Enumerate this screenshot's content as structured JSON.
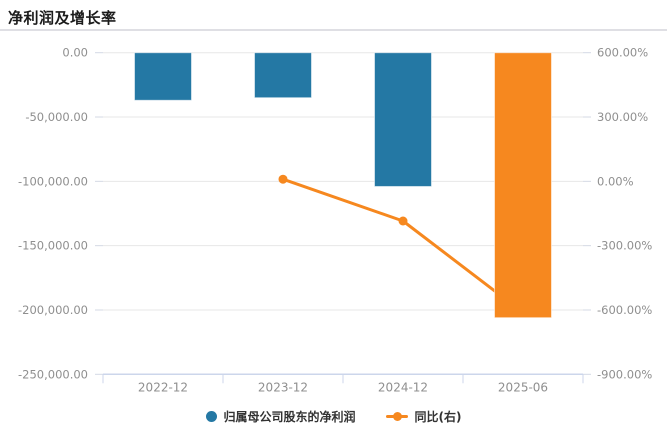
{
  "header": {
    "title": "净利润及增长率"
  },
  "legend": {
    "items": [
      {
        "label": "归属母公司股东的净利润",
        "marker": "circle-icon",
        "color": "#2478a4"
      },
      {
        "label": "同比(右)",
        "marker": "line-dot-icon",
        "color": "#f6881f"
      }
    ]
  },
  "chart_data": {
    "type": "bar",
    "subtype": "dual-axis bar+line combo",
    "title": "净利润及增长率",
    "categories": [
      "2022-12",
      "2023-12",
      "2024-12",
      "2025-06"
    ],
    "series": [
      {
        "name": "归属母公司股东的净利润",
        "type": "bar",
        "axis": "left",
        "values": [
          -37000,
          -35000,
          -104000,
          -206000
        ],
        "colors": [
          "#2478a4",
          "#2478a4",
          "#2478a4",
          "#f6881f"
        ]
      },
      {
        "name": "同比(右)",
        "type": "line",
        "axis": "right",
        "values": [
          null,
          10,
          -185,
          -612
        ],
        "color": "#f6881f"
      }
    ],
    "left_axis": {
      "max": 0,
      "min": -250000,
      "tick_values": [
        0,
        -50000,
        -100000,
        -150000,
        -200000,
        -250000
      ],
      "labels": [
        "0.00",
        "-50,000.00",
        "-100,000.00",
        "-150,000.00",
        "-200,000.00",
        "-250,000.00"
      ]
    },
    "right_axis": {
      "max": 600,
      "min": -900,
      "tick_values": [
        600,
        300,
        0,
        -300,
        -600,
        -900
      ],
      "labels": [
        "600.00%",
        "300.00%",
        "0.00%",
        "-300.00%",
        "-600.00%",
        "-900.00%"
      ]
    },
    "grid": true,
    "legend_position": "bottom",
    "palette": {
      "grid_color": "#e7e7e7",
      "axis_color": "#ccd6eb",
      "label_color": "#8f8f8f"
    }
  }
}
